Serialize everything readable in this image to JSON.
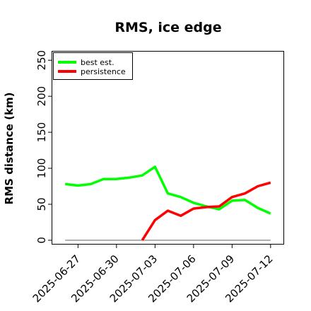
{
  "chart_data": {
    "type": "line",
    "title": "RMS, ice edge",
    "xlabel": "",
    "ylabel": "RMS distance (km)",
    "x": [
      "2025-06-26",
      "2025-06-27",
      "2025-06-28",
      "2025-06-29",
      "2025-06-30",
      "2025-07-01",
      "2025-07-02",
      "2025-07-03",
      "2025-07-04",
      "2025-07-05",
      "2025-07-06",
      "2025-07-07",
      "2025-07-08",
      "2025-07-09",
      "2025-07-10",
      "2025-07-11",
      "2025-07-12"
    ],
    "xticks": [
      "2025-06-27",
      "2025-06-30",
      "2025-07-03",
      "2025-07-06",
      "2025-07-09",
      "2025-07-12"
    ],
    "xlim": [
      "2025-06-25",
      "2025-07-13"
    ],
    "yticks": [
      0,
      50,
      100,
      150,
      200,
      250
    ],
    "ylim": [
      -5,
      262
    ],
    "grid": false,
    "legend_position": "top-left",
    "series": [
      {
        "name": "best est.",
        "color": "#00ff00",
        "values": [
          78,
          76,
          78,
          85,
          85,
          87,
          90,
          102,
          65,
          60,
          52,
          47,
          43,
          55,
          56,
          45,
          37
        ]
      },
      {
        "name": "persistence",
        "color": "#ff0000",
        "values": [
          null,
          null,
          null,
          null,
          null,
          null,
          0,
          28,
          41,
          34,
          44,
          46,
          47,
          60,
          65,
          75,
          80
        ]
      }
    ],
    "baseline": {
      "value": 0,
      "color": "#808080"
    }
  }
}
